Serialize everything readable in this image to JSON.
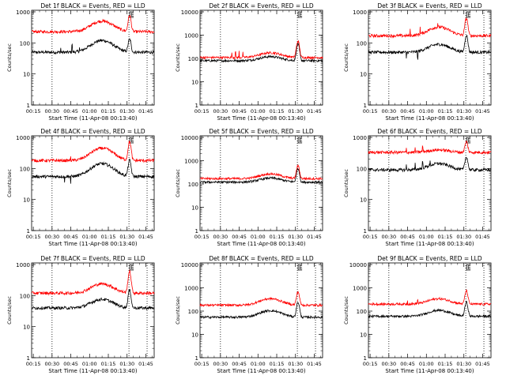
{
  "figure": {
    "xlabel": "Start Time (11-Apr-08 00:13:40)",
    "ylabel": "Counts/sec",
    "x_ticks": [
      "00:15",
      "00:30",
      "00:45",
      "01:00",
      "01:15",
      "01:30",
      "01:45"
    ],
    "y_ticks": [
      "1",
      "10",
      "100",
      "1000",
      "10000"
    ],
    "flare_marker": "E",
    "colors": {
      "events": "#000000",
      "lld": "#ff0000",
      "axis": "#000000",
      "background": "#ffffff"
    }
  },
  "chart_data": [
    {
      "type": "line",
      "title": "Det 1f BLACK = Events, RED = LLD",
      "y_max_tick": 1000,
      "y_scale": "log",
      "xlim": [
        "00:13:40",
        "01:51:40"
      ],
      "vlines": [
        "00:30:00",
        "01:31:30",
        "01:46:00"
      ],
      "series": [
        {
          "name": "Events",
          "base": 50,
          "hump": 2.4,
          "peak": 2.6,
          "spikes": [
            [
              "00:37:00",
              1.4
            ],
            [
              "00:46:00",
              1.8
            ],
            [
              "00:52:00",
              1.3
            ]
          ]
        },
        {
          "name": "LLD",
          "base": 230,
          "hump": 2.2,
          "peak": 3.3,
          "spikes": []
        }
      ]
    },
    {
      "type": "line",
      "title": "Det 2f BLACK = Events, RED = LLD",
      "y_max_tick": 10000,
      "y_scale": "log",
      "xlim": [
        "00:13:40",
        "01:51:40"
      ],
      "vlines": [
        "00:30:00",
        "01:31:30",
        "01:46:00"
      ],
      "series": [
        {
          "name": "Events",
          "base": 80,
          "hump": 1.5,
          "peak": 5,
          "spikes": []
        },
        {
          "name": "LLD",
          "base": 110,
          "hump": 1.6,
          "peak": 5,
          "spikes": [
            [
              "00:39:00",
              1.8
            ],
            [
              "00:42:00",
              1.8
            ],
            [
              "00:45:00",
              1.8
            ],
            [
              "00:48:00",
              1.8
            ]
          ]
        }
      ]
    },
    {
      "type": "line",
      "title": "Det 3f BLACK = Events, RED = LLD",
      "y_max_tick": 1000,
      "y_scale": "log",
      "xlim": [
        "00:13:40",
        "01:51:40"
      ],
      "vlines": [
        "00:30:00",
        "01:31:30",
        "01:46:00"
      ],
      "series": [
        {
          "name": "Events",
          "base": 50,
          "hump": 1.8,
          "peak": 3.5,
          "spikes": [
            [
              "00:44:00",
              0.6
            ],
            [
              "00:53:00",
              0.6
            ]
          ]
        },
        {
          "name": "LLD",
          "base": 170,
          "hump": 1.9,
          "peak": 3.6,
          "spikes": [
            [
              "00:47:00",
              1.7
            ],
            [
              "00:55:00",
              1.8
            ],
            [
              "01:09:00",
              1.4
            ]
          ]
        }
      ]
    },
    {
      "type": "line",
      "title": "Det 4f BLACK = Events, RED = LLD",
      "y_max_tick": 1000,
      "y_scale": "log",
      "xlim": [
        "00:13:40",
        "01:51:40"
      ],
      "vlines": [
        "00:30:00",
        "01:31:30",
        "01:46:00"
      ],
      "series": [
        {
          "name": "Events",
          "base": 55,
          "hump": 2.6,
          "peak": 3.3,
          "spikes": [
            [
              "00:40:00",
              0.6
            ],
            [
              "00:45:00",
              0.6
            ]
          ]
        },
        {
          "name": "LLD",
          "base": 180,
          "hump": 2.5,
          "peak": 4,
          "spikes": [
            [
              "00:45:00",
              1.4
            ]
          ]
        }
      ]
    },
    {
      "type": "line",
      "title": "Det 5f BLACK = Events, RED = LLD",
      "y_max_tick": 10000,
      "y_scale": "log",
      "xlim": [
        "00:13:40",
        "01:51:40"
      ],
      "vlines": [
        "00:30:00",
        "01:31:30",
        "01:46:00"
      ],
      "series": [
        {
          "name": "Events",
          "base": 120,
          "hump": 1.5,
          "peak": 3.8,
          "spikes": []
        },
        {
          "name": "LLD",
          "base": 170,
          "hump": 1.6,
          "peak": 3.6,
          "spikes": []
        }
      ]
    },
    {
      "type": "line",
      "title": "Det 6f BLACK = Events, RED = LLD",
      "y_max_tick": 1000,
      "y_scale": "log",
      "xlim": [
        "00:13:40",
        "01:51:40"
      ],
      "vlines": [
        "00:30:00",
        "01:31:30",
        "01:46:00"
      ],
      "series": [
        {
          "name": "Events",
          "base": 90,
          "hump": 1.6,
          "peak": 2.6,
          "spikes": [
            [
              "00:44:00",
              1.5
            ],
            [
              "00:51:00",
              1.5
            ],
            [
              "00:57:00",
              1.6
            ],
            [
              "01:03:00",
              1.4
            ]
          ]
        },
        {
          "name": "LLD",
          "base": 330,
          "hump": 1.2,
          "peak": 2.2,
          "spikes": [
            [
              "00:44:00",
              1.4
            ],
            [
              "00:51:00",
              1.4
            ],
            [
              "00:57:00",
              1.5
            ]
          ]
        }
      ]
    },
    {
      "type": "line",
      "title": "Det 7f BLACK = Events, RED = LLD",
      "y_max_tick": 1000,
      "y_scale": "log",
      "xlim": [
        "00:13:40",
        "01:51:40"
      ],
      "vlines": [
        "00:30:00",
        "01:31:30",
        "01:46:00"
      ],
      "series": [
        {
          "name": "Events",
          "base": 40,
          "hump": 1.9,
          "peak": 3.7,
          "spikes": []
        },
        {
          "name": "LLD",
          "base": 120,
          "hump": 2.0,
          "peak": 4.9,
          "spikes": []
        }
      ]
    },
    {
      "type": "line",
      "title": "Det 8f BLACK = Events, RED = LLD",
      "y_max_tick": 10000,
      "y_scale": "log",
      "xlim": [
        "00:13:40",
        "01:51:40"
      ],
      "vlines": [
        "00:30:00",
        "01:31:30",
        "01:46:00"
      ],
      "series": [
        {
          "name": "Events",
          "base": 55,
          "hump": 1.9,
          "peak": 4.4,
          "spikes": []
        },
        {
          "name": "LLD",
          "base": 180,
          "hump": 1.9,
          "peak": 3.7,
          "spikes": []
        }
      ]
    },
    {
      "type": "line",
      "title": "Det 9f BLACK = Events, RED = LLD",
      "y_max_tick": 10000,
      "y_scale": "log",
      "xlim": [
        "00:13:40",
        "01:51:40"
      ],
      "vlines": [
        "00:30:00",
        "01:31:30",
        "01:46:00"
      ],
      "series": [
        {
          "name": "Events",
          "base": 60,
          "hump": 1.8,
          "peak": 4.0,
          "spikes": []
        },
        {
          "name": "LLD",
          "base": 200,
          "hump": 1.7,
          "peak": 3.7,
          "spikes": [
            [
              "00:45:00",
              1.4
            ],
            [
              "00:53:00",
              1.4
            ]
          ]
        }
      ]
    }
  ]
}
